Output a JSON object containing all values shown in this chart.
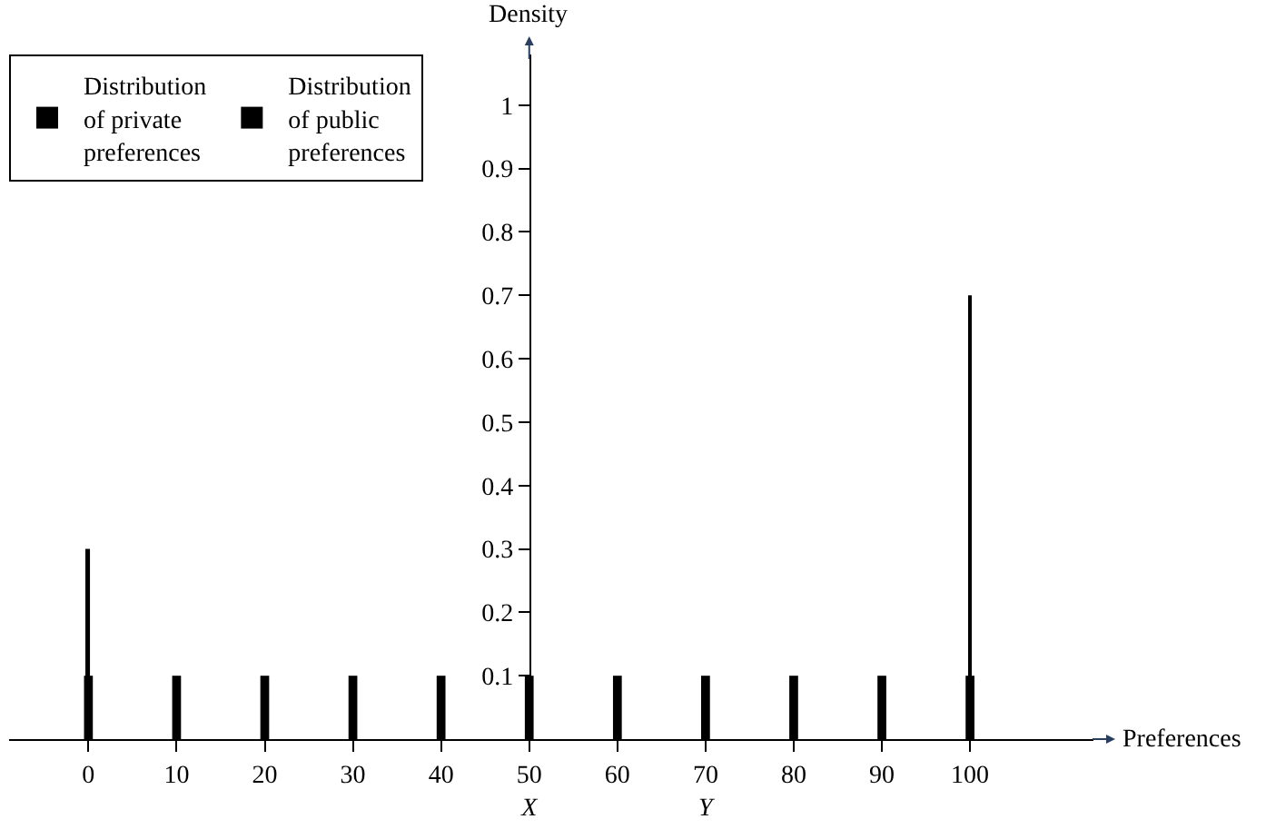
{
  "chart_data": {
    "type": "bar",
    "xlabel": "Preferences",
    "ylabel": "Density",
    "legend": "top left",
    "grid": false,
    "xlim": [
      -9,
      114
    ],
    "ylim": [
      0,
      1.08
    ],
    "xticks": [
      0,
      10,
      20,
      30,
      40,
      {
        "value": 50,
        "label": "50\nX"
      },
      60,
      {
        "value": 70,
        "label": "70\nY"
      },
      80,
      90,
      100
    ],
    "yticks": [
      0.1,
      0.2,
      0.3,
      0.4,
      0.5,
      0.6,
      0.7,
      0.8,
      0.9,
      1.0
    ],
    "series": [
      {
        "name": "Distribution of private preferences",
        "color": "#000000",
        "line_style": "dashed",
        "x": [
          0,
          10,
          20,
          30,
          40,
          50,
          60,
          70,
          80,
          90,
          100
        ],
        "values": [
          0.1,
          0.1,
          0.1,
          0.1,
          0.1,
          0.1,
          0.1,
          0.1,
          0.1,
          0.1,
          0.1
        ]
      },
      {
        "name": "Distribution of public preferences",
        "color": "#000000",
        "line_style": "solid",
        "x": [
          0,
          100
        ],
        "values": [
          0.3,
          0.7
        ]
      }
    ]
  }
}
